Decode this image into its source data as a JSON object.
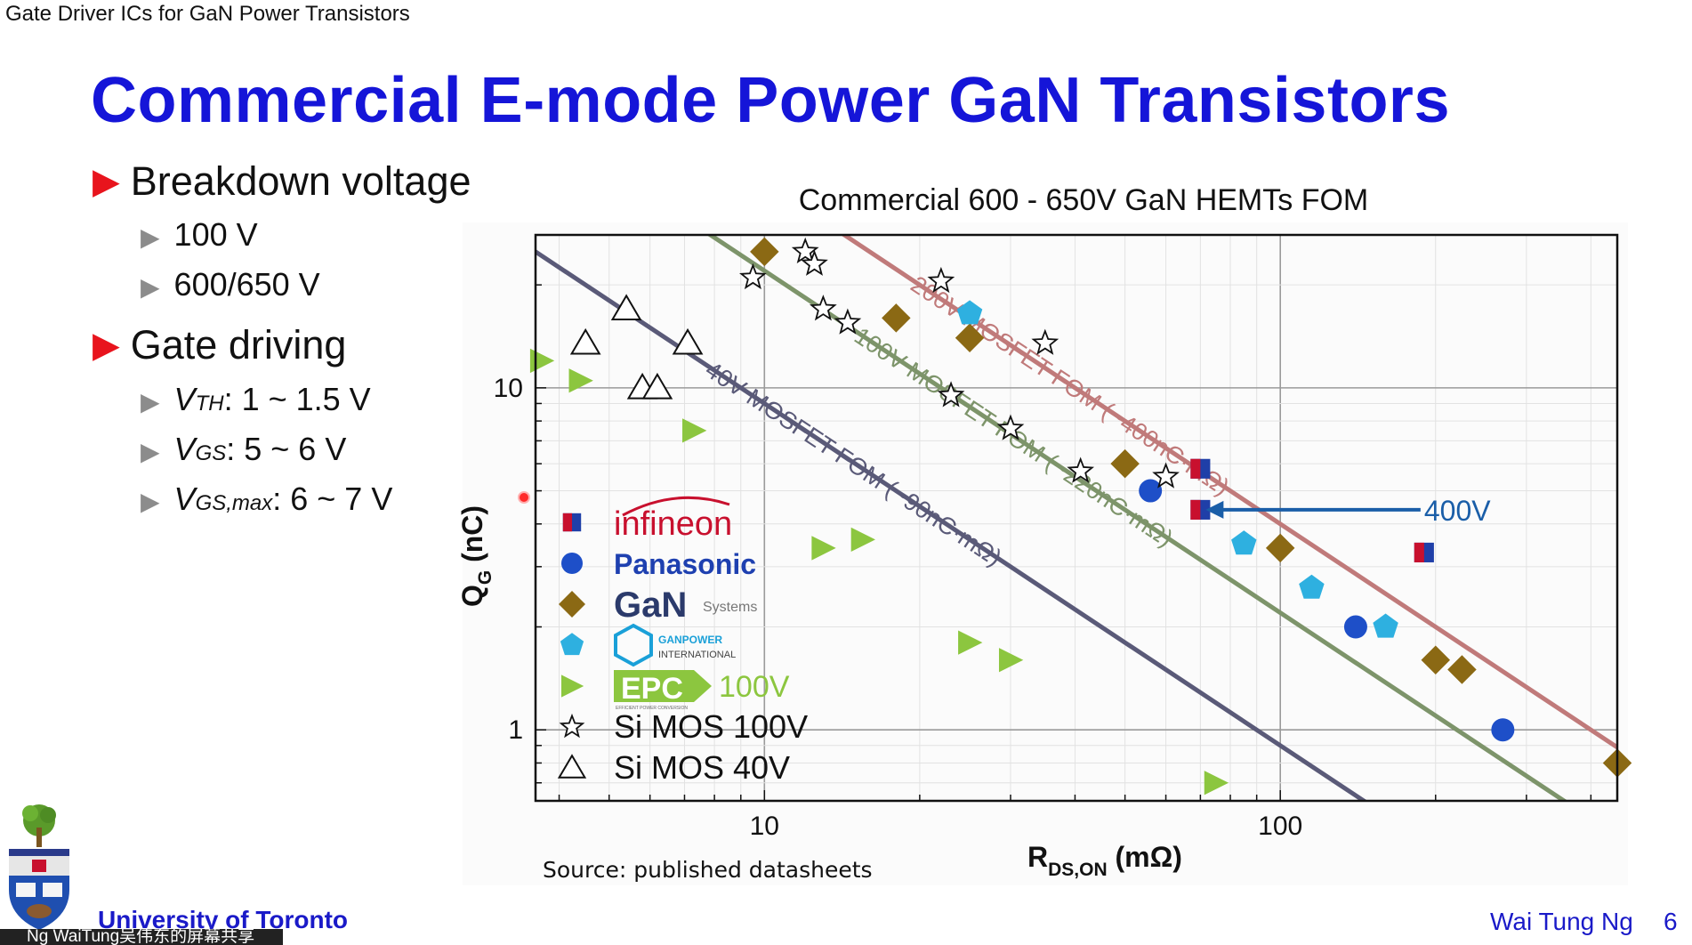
{
  "header": {
    "text": "Gate Driver ICs for GaN Power Transistors"
  },
  "slide": {
    "title": "Commercial E-mode Power GaN Transistors",
    "bullets": [
      {
        "label": "Breakdown voltage",
        "sub": [
          {
            "text": "100 V"
          },
          {
            "text": "600/650 V"
          }
        ]
      },
      {
        "label": "Gate driving",
        "sub": [
          {
            "main": "V",
            "subscript": "TH",
            "rest": ": 1 ~ 1.5 V"
          },
          {
            "main": "V",
            "subscript": "GS",
            "rest": ": 5 ~ 6 V"
          },
          {
            "main": "V",
            "subscript": "GS,max",
            "rest": ": 6 ~ 7 V"
          }
        ]
      }
    ]
  },
  "chart_data": {
    "type": "scatter",
    "title": "Commercial 600 - 650V GaN HEMTs FOM",
    "xlabel_main": "R",
    "xlabel_sub": "DS,ON",
    "xlabel_unit": " (mΩ)",
    "ylabel_main": "Q",
    "ylabel_sub": "G",
    "ylabel_unit": " (nC)",
    "xscale": "log",
    "yscale": "log",
    "xlim": [
      3.6,
      450
    ],
    "ylim": [
      0.62,
      28
    ],
    "x_ticks": [
      {
        "value": 10,
        "label": "10"
      },
      {
        "value": 100,
        "label": "100"
      }
    ],
    "y_ticks": [
      {
        "value": 1,
        "label": "1"
      },
      {
        "value": 10,
        "label": "10"
      }
    ],
    "grid": true,
    "source": "Source: published datasheets",
    "fom_lines": [
      {
        "label": "200V MOSFET FOM (~400nC·mΩ)",
        "k": 400,
        "color": "#c07a7a"
      },
      {
        "label": "100V MOSFET FOM (~220nC·mΩ)",
        "k": 220,
        "color": "#7d946a"
      },
      {
        "label": "40V MOSFET FOM (~90nC·mΩ)",
        "k": 90,
        "color": "#5a5a78"
      }
    ],
    "annotation": {
      "text": "400V",
      "color": "#1a5ea8",
      "x_from": 190,
      "x_to": 70,
      "y": 4.4
    },
    "legend": [
      {
        "series": "infineon",
        "text": "infineon",
        "color": "#c8102e"
      },
      {
        "series": "panasonic",
        "text": "Panasonic",
        "color": "#1e40b0"
      },
      {
        "series": "gansystems",
        "text": "GaN",
        "sub": "Systems",
        "color": "#2b3a6b"
      },
      {
        "series": "ganpower",
        "text": "GANPOWER",
        "sub": "INTERNATIONAL",
        "color": "#1aa0d8"
      },
      {
        "series": "epc",
        "text": "EPC",
        "sub": "EFFICIENT POWER CONVERSION",
        "suffix": "100V",
        "color": "#8cc63f"
      },
      {
        "series": "simos100",
        "text": "Si MOS 100V",
        "color": "#111111"
      },
      {
        "series": "simos40",
        "text": "Si MOS 40V",
        "color": "#111111"
      }
    ],
    "series": [
      {
        "name": "infineon",
        "marker": "square-split",
        "points": [
          [
            70,
            5.8
          ],
          [
            70,
            4.4
          ],
          [
            190,
            3.3
          ]
        ]
      },
      {
        "name": "panasonic",
        "marker": "circle",
        "color": "#1e4fc8",
        "points": [
          [
            56,
            5.0
          ],
          [
            140,
            2.0
          ],
          [
            270,
            1.0
          ]
        ]
      },
      {
        "name": "gansystems",
        "marker": "diamond",
        "color": "#8b6914",
        "points": [
          [
            10,
            25
          ],
          [
            18,
            16
          ],
          [
            25,
            14
          ],
          [
            50,
            6.0
          ],
          [
            100,
            3.4
          ],
          [
            200,
            1.6
          ],
          [
            225,
            1.5
          ],
          [
            450,
            0.8
          ]
        ]
      },
      {
        "name": "ganpower",
        "marker": "pentagon",
        "color": "#2eb0e0",
        "points": [
          [
            25,
            16.5
          ],
          [
            85,
            3.5
          ],
          [
            115,
            2.6
          ],
          [
            160,
            2.0
          ]
        ]
      },
      {
        "name": "epc",
        "marker": "triangle-right",
        "color": "#8cc63f",
        "points": [
          [
            3.7,
            12
          ],
          [
            4.4,
            10.5
          ],
          [
            7.3,
            7.5
          ],
          [
            13,
            3.4
          ],
          [
            15.5,
            3.6
          ],
          [
            25,
            1.8
          ],
          [
            30,
            1.6
          ],
          [
            75,
            0.7
          ]
        ]
      },
      {
        "name": "simos100",
        "marker": "star",
        "color": "#111111",
        "points": [
          [
            9.5,
            21
          ],
          [
            12,
            25
          ],
          [
            12.5,
            23
          ],
          [
            13,
            17
          ],
          [
            14.5,
            15.5
          ],
          [
            22,
            20.5
          ],
          [
            23,
            9.5
          ],
          [
            30,
            7.6
          ],
          [
            35,
            13.5
          ],
          [
            41,
            5.7
          ],
          [
            60,
            5.5
          ]
        ]
      },
      {
        "name": "simos40",
        "marker": "triangle-up",
        "color": "#111111",
        "points": [
          [
            4.5,
            13.5
          ],
          [
            5.4,
            17
          ],
          [
            5.8,
            10
          ],
          [
            6.2,
            10
          ],
          [
            7.1,
            13.5
          ]
        ]
      }
    ]
  },
  "footer": {
    "org": "University of Toronto",
    "author": "Wai Tung Ng",
    "page": "6"
  },
  "caption": {
    "text": "Ng WaiTung吴伟东的屏幕共享"
  },
  "colors": {
    "title": "#1515d8",
    "bullet": "#e8141d",
    "sub_bullet": "#8c8c8c",
    "footer": "#1a1ac8"
  }
}
